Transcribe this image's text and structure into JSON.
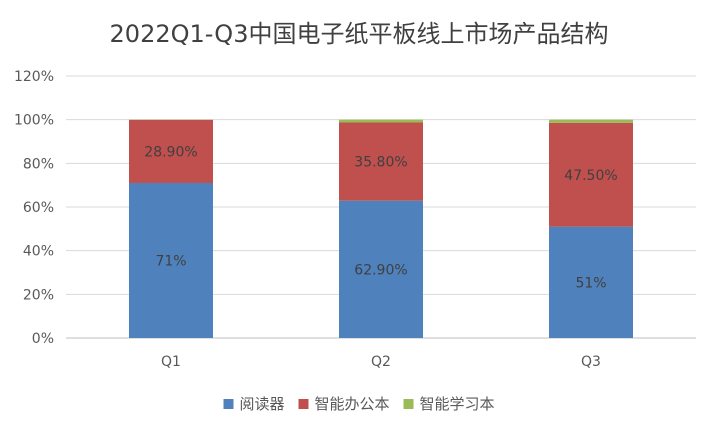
{
  "chart_data": {
    "type": "bar",
    "stacked": true,
    "title": "2022Q1-Q3中国电子纸平板线上市场产品结构",
    "categories": [
      "Q1",
      "Q2",
      "Q3"
    ],
    "y_ticks": [
      "0%",
      "20%",
      "40%",
      "60%",
      "80%",
      "100%",
      "120%"
    ],
    "ylim": [
      0,
      120
    ],
    "grid": true,
    "legend_position": "bottom",
    "series": [
      {
        "name": "阅读器",
        "color": "#4F81BD",
        "values": [
          71,
          62.9,
          51
        ],
        "labels": [
          "71%",
          "62.90%",
          "51%"
        ]
      },
      {
        "name": "智能办公本",
        "color": "#C0504D",
        "values": [
          28.9,
          35.8,
          47.5
        ],
        "labels": [
          "28.90%",
          "35.80%",
          "47.50%"
        ]
      },
      {
        "name": "智能学习本",
        "color": "#9BBB59",
        "values": [
          0.1,
          1.3,
          1.5
        ],
        "labels": [
          "",
          "",
          ""
        ]
      }
    ]
  }
}
